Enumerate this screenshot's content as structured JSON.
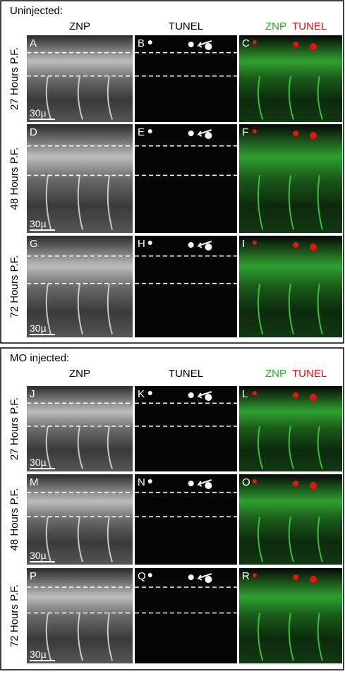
{
  "sections": [
    {
      "title": "Uninjected:",
      "columns": [
        "ZNP",
        "TUNEL"
      ],
      "merged_column": [
        "ZNP",
        "TUNEL"
      ],
      "rows": [
        {
          "label": "27 Hours P.F.",
          "panels": [
            "A",
            "B",
            "C"
          ],
          "scale_label": "30µ"
        },
        {
          "label": "48 Hours P.F.",
          "panels": [
            "D",
            "E",
            "F"
          ],
          "scale_label": "30µ"
        },
        {
          "label": "72 Hours P.F.",
          "panels": [
            "G",
            "H",
            "I"
          ],
          "scale_label": "30µ"
        }
      ]
    },
    {
      "title": "MO injected:",
      "columns": [
        "ZNP",
        "TUNEL"
      ],
      "merged_column": [
        "ZNP",
        "TUNEL"
      ],
      "rows": [
        {
          "label": "27 Hours P.F.",
          "panels": [
            "J",
            "K",
            "L"
          ],
          "scale_label": "30µ"
        },
        {
          "label": "48 Hours P.F.",
          "panels": [
            "M",
            "N",
            "O"
          ],
          "scale_label": "30µ"
        },
        {
          "label": "72 Hours P.F.",
          "panels": [
            "P",
            "Q",
            "R"
          ],
          "scale_label": "30µ"
        }
      ]
    }
  ]
}
